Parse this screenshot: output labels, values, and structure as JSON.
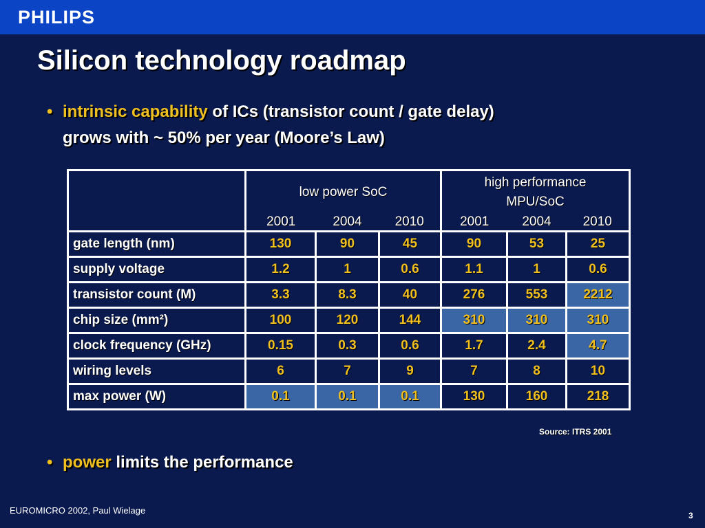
{
  "brand": "PHILIPS",
  "title": "Silicon technology roadmap",
  "bullets": {
    "b1_highlight": "intrinsic capability",
    "b1_rest_line1": " of ICs (transistor count / gate delay)",
    "b1_line2": "grows with ~ 50% per year (Moore’s Law)",
    "b2_highlight": "power",
    "b2_rest": " limits the performance",
    "marker": "•"
  },
  "table": {
    "group_low": "low power SoC",
    "group_high": "high performance MPU/SoC",
    "years_low": [
      "2001",
      "2004",
      "2010"
    ],
    "years_high": [
      "2001",
      "2004",
      "2010"
    ],
    "rows": [
      {
        "label": "gate length (nm)",
        "values": [
          "130",
          "90",
          "45",
          "90",
          "53",
          "25"
        ]
      },
      {
        "label": "supply voltage",
        "values": [
          "1.2",
          "1",
          "0.6",
          "1.1",
          "1",
          "0.6"
        ]
      },
      {
        "label": "transistor count (M)",
        "values": [
          "3.3",
          "8.3",
          "40",
          "276",
          "553",
          "2212"
        ]
      },
      {
        "label": "chip size (mm²)",
        "values": [
          "100",
          "120",
          "144",
          "310",
          "310",
          "310"
        ]
      },
      {
        "label": "clock frequency (GHz)",
        "values": [
          "0.15",
          "0.3",
          "0.6",
          "1.7",
          "2.4",
          "4.7"
        ]
      },
      {
        "label": "wiring levels",
        "values": [
          "6",
          "7",
          "9",
          "7",
          "8",
          "10"
        ]
      },
      {
        "label": "max power (W)",
        "values": [
          "0.1",
          "0.1",
          "0.1",
          "130",
          "160",
          "218"
        ]
      }
    ],
    "shaded_color": "#3a66a6"
  },
  "source": "Source: ITRS 2001",
  "footer": "EUROMICRO 2002, Paul Wielage",
  "page_number": "3",
  "colors": {
    "background": "#0a1a4e",
    "top_bar": "#0b44c4",
    "highlight": "#f0c020"
  }
}
